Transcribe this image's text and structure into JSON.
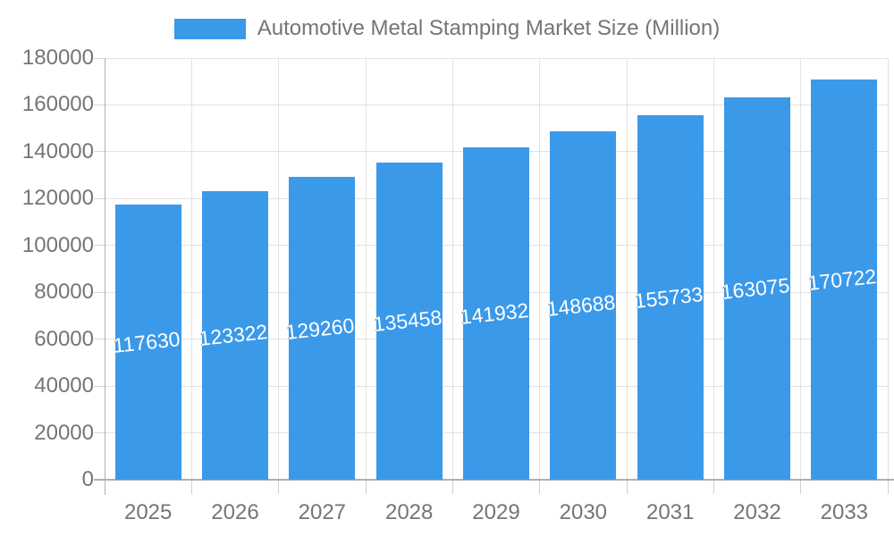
{
  "legend": {
    "label": "Automotive Metal Stamping Market Size (Million)",
    "swatch_color": "#3b99ea"
  },
  "chart_data": {
    "type": "bar",
    "title": "Automotive Metal Stamping Market Size (Million)",
    "categories": [
      "2025",
      "2026",
      "2027",
      "2028",
      "2029",
      "2030",
      "2031",
      "2032",
      "2033"
    ],
    "series": [
      {
        "name": "Automotive Metal Stamping Market Size (Million)",
        "values": [
          117630,
          123322,
          129260,
          135458,
          141932,
          148688,
          155733,
          163075,
          170722
        ]
      }
    ],
    "xlabel": "",
    "ylabel": "",
    "ylim": [
      0,
      180000
    ],
    "ytick_step": 20000,
    "grid": true,
    "legend_position": "top-center",
    "bar_color": "#3b99ea",
    "bar_value_label_color": "#ffffff",
    "axis_text_color": "#757575",
    "gridline_color": "#e2e2e2"
  }
}
